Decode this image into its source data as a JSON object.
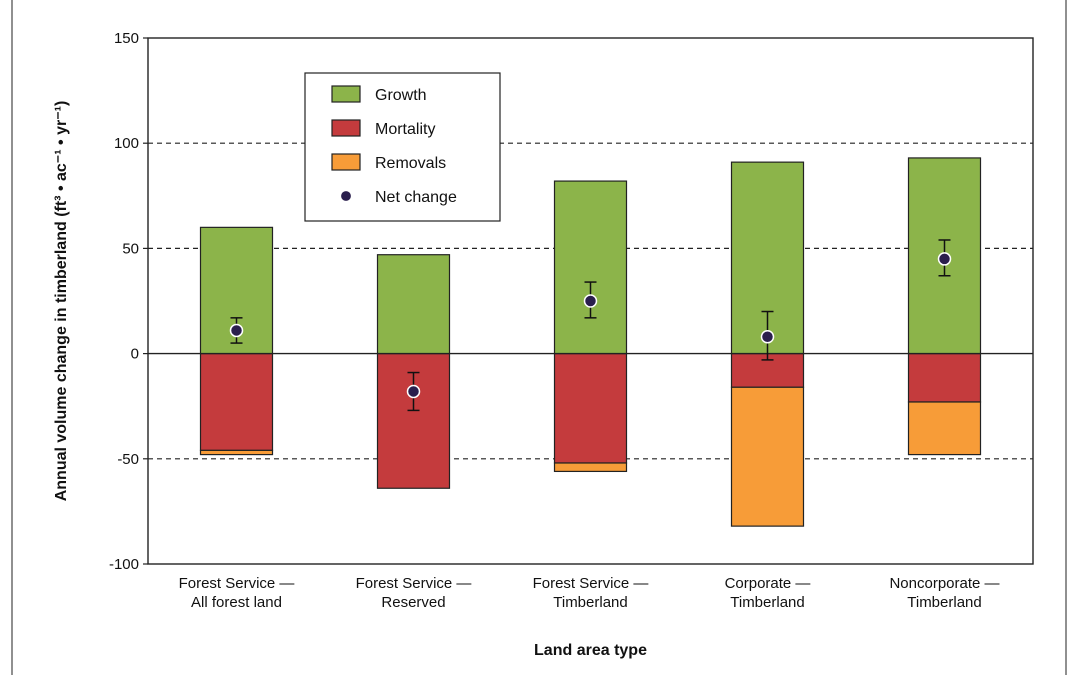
{
  "chart_data": {
    "type": "bar",
    "stacked": true,
    "xlabel": "Land area type",
    "ylabel": "Annual volume change in timberland (ft³ • ac⁻¹ • yr⁻¹)",
    "ylim": [
      -100,
      150
    ],
    "yticks": [
      -100,
      -50,
      0,
      50,
      100,
      150
    ],
    "ytick_labels": [
      "-100",
      "-50",
      "0",
      "50",
      "100",
      "150"
    ],
    "grid": "dashed at 100, 50, -50",
    "legend_position": "top-left",
    "categories": [
      [
        "Forest Service —",
        "All forest land"
      ],
      [
        "Forest Service —",
        "Reserved"
      ],
      [
        "Forest Service —",
        "Timberland"
      ],
      [
        "Corporate —",
        "Timberland"
      ],
      [
        "Noncorporate —",
        "Timberland"
      ]
    ],
    "series": [
      {
        "name": "Growth",
        "color": "#8cb44a",
        "values": [
          60,
          47,
          82,
          91,
          93
        ]
      },
      {
        "name": "Mortality",
        "color": "#c43b3d",
        "values": [
          -46,
          -64,
          -52,
          -16,
          -23
        ]
      },
      {
        "name": "Removals",
        "color": "#f79c38",
        "values": [
          -2,
          0,
          -4,
          -66,
          -25
        ]
      }
    ],
    "net_change": {
      "name": "Net change",
      "color": "#2a1f4d",
      "values": [
        11,
        -18,
        25,
        8,
        45
      ],
      "error_low": [
        5,
        -27,
        17,
        -3,
        37
      ],
      "error_high": [
        17,
        -9,
        34,
        20,
        54
      ]
    }
  }
}
